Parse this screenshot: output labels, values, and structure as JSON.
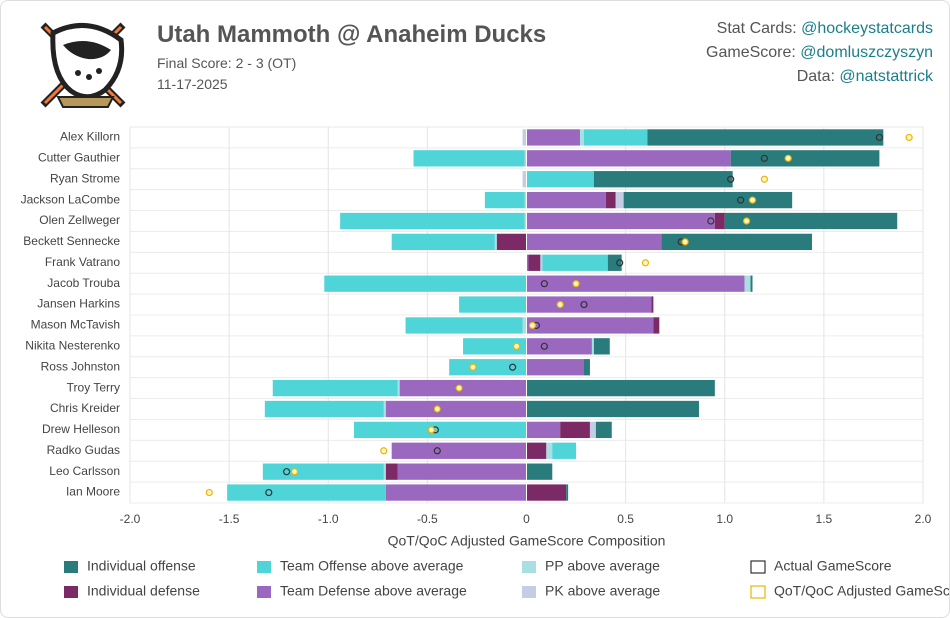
{
  "header": {
    "title": "Utah Mammoth @ Anaheim Ducks",
    "subtitle": "Final Score: 2 - 3 (OT)",
    "date": "11-17-2025",
    "credits": [
      {
        "label": "Stat Cards:",
        "handle": "@hockeystatcards"
      },
      {
        "label": "GameScore:",
        "handle": "@domluszczyszyn"
      },
      {
        "label": "Data:",
        "handle": "@natstattrick"
      }
    ]
  },
  "chart_data": {
    "type": "stacked-hbar",
    "xlabel": "QoT/QoC Adjusted GameScore Composition",
    "categories": [
      "Alex Killorn",
      "Cutter Gauthier",
      "Ryan Strome",
      "Jackson LaCombe",
      "Olen Zellweger",
      "Beckett Sennecke",
      "Frank Vatrano",
      "Jacob Trouba",
      "Jansen Harkins",
      "Mason McTavish",
      "Nikita Nesterenko",
      "Ross Johnston",
      "Troy Terry",
      "Chris Kreider",
      "Drew Helleson",
      "Radko Gudas",
      "Leo Carlsson",
      "Ian Moore"
    ],
    "series": [
      {
        "name": "Team Defense above average",
        "color": "#9b68c0",
        "values": [
          0.27,
          1.03,
          0,
          0.4,
          0.95,
          0.68,
          0.01,
          1.1,
          0.63,
          0.64,
          0.33,
          0.29,
          -0.64,
          -0.71,
          0.17,
          -0.68,
          -0.65,
          -0.71
        ]
      },
      {
        "name": "Individual defense",
        "color": "#7b2a66",
        "values": [
          0,
          0,
          0,
          0.05,
          0.05,
          -0.15,
          0.06,
          0,
          0.01,
          0.03,
          0,
          0,
          0,
          0,
          0.15,
          0.1,
          -0.06,
          0.2
        ]
      },
      {
        "name": "PP above average",
        "color": "#a7dfe3",
        "values": [
          0.02,
          0,
          0,
          -0.01,
          -0.01,
          -0.01,
          0,
          0.03,
          0,
          -0.02,
          0.01,
          0,
          -0.01,
          -0.01,
          0,
          0.03,
          -0.01,
          0
        ]
      },
      {
        "name": "PK above average",
        "color": "#c3cde3",
        "values": [
          -0.02,
          -0.01,
          -0.02,
          0.04,
          0,
          0,
          0.01,
          0,
          0,
          0,
          0,
          0,
          0,
          0,
          0.03,
          0,
          0,
          0
        ]
      },
      {
        "name": "Team Offense above average",
        "color": "#4fd4d8",
        "values": [
          0.32,
          -0.56,
          0.34,
          -0.2,
          -0.93,
          -0.52,
          0.33,
          -1.02,
          -0.34,
          -0.59,
          -0.32,
          -0.39,
          -0.63,
          -0.6,
          -0.87,
          0.12,
          -0.61,
          -0.8
        ]
      },
      {
        "name": "Individual offense",
        "color": "#2a7b7b",
        "values": [
          1.19,
          0.75,
          0.7,
          0.85,
          0.87,
          0.76,
          0.07,
          0.01,
          0,
          0,
          0.08,
          0.03,
          0.95,
          0.87,
          0.08,
          0,
          0.13,
          0.01
        ]
      }
    ],
    "markers": [
      {
        "name": "Actual GameScore",
        "color": "#333333",
        "values": [
          1.78,
          1.2,
          1.03,
          1.08,
          0.93,
          0.78,
          0.47,
          0.09,
          0.29,
          0.05,
          0.09,
          -0.07,
          -0.34,
          -0.45,
          -0.46,
          -0.45,
          -1.21,
          -1.3
        ]
      },
      {
        "name": "QoT/QoC Adjusted GameScore",
        "color": "#f0b400",
        "values": [
          1.93,
          1.32,
          1.2,
          1.14,
          1.11,
          0.8,
          0.6,
          0.25,
          0.17,
          0.03,
          -0.05,
          -0.27,
          -0.34,
          -0.45,
          -0.48,
          -0.72,
          -1.17,
          -1.6
        ]
      }
    ],
    "xlim": [
      -2,
      2
    ],
    "xticks": [
      {
        "value": -2,
        "label": "-2.0"
      },
      {
        "value": -1.5,
        "label": "-1.5"
      },
      {
        "value": -1,
        "label": "-1.0"
      },
      {
        "value": -0.5,
        "label": "-0.5"
      },
      0,
      {
        "value": 0.5,
        "label": "0.5"
      },
      {
        "value": 1,
        "label": "1.0"
      },
      {
        "value": 1.5,
        "label": "1.5"
      },
      {
        "value": 2,
        "label": "2.0"
      }
    ],
    "grid": true
  }
}
